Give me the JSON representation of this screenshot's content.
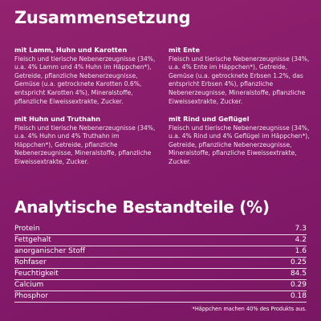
{
  "header": {
    "title": "Zusammensetzung"
  },
  "sections": [
    {
      "heading": "mit Lamm, Huhn und Karotten",
      "text": "Fleisch und tierische Nebenerzeugnisse (34%, u.a. 4% Lamm und 4% Huhn im Häppchen*), Getreide, pflanzliche Nebenerzeugnisse, Gemüse (u.a. getrocknete Karotten 0.6%, entspricht Karotten 4%), Mineralstoffe, pflanzliche Eiweissextrakte, Zucker."
    },
    {
      "heading": "mit Ente",
      "text": "Fleisch und tierische Nebenerzeugnisse (34%, u.a. 4% Ente im Häppchen*), Getreide, Gemüse (u.a. getrocknete Erbsen 1.2%, das entspricht Erbsen 4%), pflanzliche Nebenerzeugnisse, Mineralstoffe, pflanzliche Eiweissextrakte, Zucker."
    },
    {
      "heading": "mit Huhn und Truthahn",
      "text": "Fleisch und tierische Nebenerzeugnisse (34%, u.a. 4% Huhn und 4% Truthahn im Häppchen*), Getreide, pflanzliche Nebenerzeugnisse, Mineralstoffe, pflanzliche Eiweissextrakte, Zucker."
    },
    {
      "heading": "mit Rind und Geflügel",
      "text": "Fleisch und tierische Nebenerzeugnisse (34%, u.a. 4% Rind und 4% Geflügel im Häppchen*), Getreide, pflanzliche Nebenerzeugnisse, Mineralstoffe, pflanzliche Eiweissextrakte, Zucker."
    }
  ],
  "analysis": {
    "title": "Analytische Bestandteile (%)",
    "rows": [
      [
        "Protein",
        7.3
      ],
      [
        "Fettgehalt",
        4.2
      ],
      [
        "anorganischer Stoff",
        1.6
      ],
      [
        "Rohfaser",
        0.25
      ],
      [
        "Feuchtigkeit",
        84.5
      ],
      [
        "Calcium",
        0.29
      ],
      [
        "Phosphor",
        0.18
      ]
    ]
  },
  "footnote": "*Häppchen machen 40% des Produkts aus."
}
